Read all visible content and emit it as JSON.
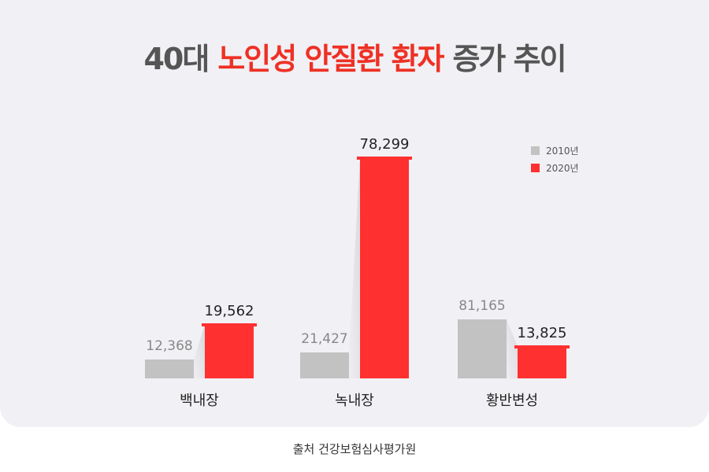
{
  "title": {
    "part1": "40대",
    "part2": "노인성 안질환 환자",
    "part3": "증가 추이"
  },
  "source": "출처 건강보험심사평가원",
  "colors": {
    "series_2010": "#c2c2c2",
    "series_2020": "#ff3030",
    "accent": "#ee3124"
  },
  "chart_data": {
    "type": "bar",
    "title": "40대 노인성 안질환 환자 증가 추이",
    "categories": [
      "백내장",
      "녹내장",
      "황반변성"
    ],
    "series": [
      {
        "name": "2010년",
        "values": [
          12368,
          21427,
          81165
        ],
        "labels": [
          "12,368",
          "21,427",
          "81,165"
        ]
      },
      {
        "name": "2020년",
        "values": [
          19562,
          78299,
          13825
        ],
        "labels": [
          "19,562",
          "78,299",
          "13,825"
        ]
      }
    ],
    "legend": "top-right",
    "grid": false
  }
}
